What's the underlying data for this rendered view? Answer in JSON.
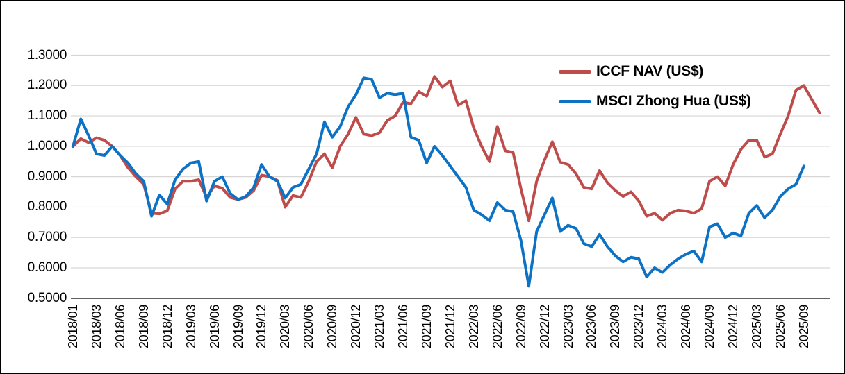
{
  "legend": {
    "items": [
      {
        "label": "ICCF NAV (US$)",
        "color": "#BE4C4B"
      },
      {
        "label": "MSCI Zhong Hua (US$)",
        "color": "#0D72C4"
      }
    ]
  },
  "y_axis": {
    "labels": [
      "1.3000",
      "1.2000",
      "1.1000",
      "1.0000",
      "0.9000",
      "0.8000",
      "0.7000",
      "0.6000",
      "0.5000"
    ]
  },
  "x_axis": {
    "labels": [
      "2018/01",
      "2018/03",
      "2018/06",
      "2018/09",
      "2018/12",
      "2019/03",
      "2019/06",
      "2019/09",
      "2019/12",
      "2020/03",
      "2020/06",
      "2020/09",
      "2020/12",
      "2021/03",
      "2021/06",
      "2021/09",
      "2021/12",
      "2022/03",
      "2022/06",
      "2022/09",
      "2022/12",
      "2023/03",
      "2023/06",
      "2023/09",
      "2023/12",
      "2024/03",
      "2024/06",
      "2024/09",
      "2024/12",
      "2025/03",
      "2025/06",
      "2025/09"
    ]
  },
  "colors": {
    "gridline": "#D6D6D6",
    "axis": "#000000",
    "border": "#000000"
  },
  "chart_data": {
    "type": "line",
    "title": "",
    "xlabel": "",
    "ylabel": "",
    "ylim": [
      0.5,
      1.3
    ],
    "grid": true,
    "legend_position": "top-right-inside",
    "categories": [
      "2018/01",
      "2018/01",
      "2018/02",
      "2018/03",
      "2018/04",
      "2018/05",
      "2018/06",
      "2018/07",
      "2018/08",
      "2018/09",
      "2018/10",
      "2018/11",
      "2018/12",
      "2019/01",
      "2019/02",
      "2019/03",
      "2019/04",
      "2019/05",
      "2019/06",
      "2019/07",
      "2019/08",
      "2019/09",
      "2019/10",
      "2019/11",
      "2019/12",
      "2020/01",
      "2020/02",
      "2020/03",
      "2020/04",
      "2020/05",
      "2020/06",
      "2020/07",
      "2020/08",
      "2020/09",
      "2020/10",
      "2020/11",
      "2020/12",
      "2021/01",
      "2021/02",
      "2021/03",
      "2021/04",
      "2021/05",
      "2021/06",
      "2021/07",
      "2021/08",
      "2021/09",
      "2021/10",
      "2021/11",
      "2021/12",
      "2022/01",
      "2022/02",
      "2022/03",
      "2022/04",
      "2022/05",
      "2022/06",
      "2022/07",
      "2022/08",
      "2022/09",
      "2022/10",
      "2022/11",
      "2022/12",
      "2023/01",
      "2023/02",
      "2023/03",
      "2023/04",
      "2023/05",
      "2023/06",
      "2023/07",
      "2023/08",
      "2023/09",
      "2023/10",
      "2023/11",
      "2023/12",
      "2024/01",
      "2024/02",
      "2024/03",
      "2024/04",
      "2024/05",
      "2024/06",
      "2024/07",
      "2024/08",
      "2024/09",
      "2024/10",
      "2024/11",
      "2024/12",
      "2025/01",
      "2025/02",
      "2025/03",
      "2025/04",
      "2025/05",
      "2025/06",
      "2025/07",
      "2025/08",
      "2025/09",
      "2025/10",
      "2025/11"
    ],
    "series": [
      {
        "name": "ICCF NAV (US$)",
        "color": "#BE4C4B",
        "values": [
          1.0,
          1.025,
          1.012,
          1.028,
          1.02,
          1.0,
          0.97,
          0.93,
          0.9,
          0.875,
          0.78,
          0.778,
          0.788,
          0.86,
          0.885,
          0.885,
          0.89,
          0.832,
          0.87,
          0.862,
          0.832,
          0.825,
          0.832,
          0.855,
          0.905,
          0.9,
          0.888,
          0.8,
          0.838,
          0.832,
          0.885,
          0.95,
          0.975,
          0.93,
          1.0,
          1.04,
          1.095,
          1.04,
          1.035,
          1.045,
          1.085,
          1.1,
          1.145,
          1.14,
          1.18,
          1.165,
          1.23,
          1.195,
          1.215,
          1.135,
          1.15,
          1.06,
          1.0,
          0.95,
          1.065,
          0.985,
          0.98,
          0.86,
          0.755,
          0.885,
          0.955,
          1.015,
          0.948,
          0.94,
          0.91,
          0.865,
          0.86,
          0.92,
          0.88,
          0.855,
          0.835,
          0.85,
          0.82,
          0.77,
          0.78,
          0.757,
          0.78,
          0.79,
          0.787,
          0.78,
          0.795,
          0.885,
          0.9,
          0.87,
          0.94,
          0.99,
          1.02,
          1.02,
          0.965,
          0.975,
          1.04,
          1.1,
          1.185,
          1.2,
          1.155,
          1.11
        ]
      },
      {
        "name": "MSCI Zhong Hua (US$)",
        "color": "#0D72C4",
        "values": [
          1.0,
          1.09,
          1.035,
          0.975,
          0.97,
          1.0,
          0.97,
          0.945,
          0.91,
          0.885,
          0.77,
          0.84,
          0.81,
          0.89,
          0.925,
          0.945,
          0.95,
          0.82,
          0.885,
          0.9,
          0.845,
          0.825,
          0.835,
          0.865,
          0.94,
          0.9,
          0.885,
          0.83,
          0.865,
          0.875,
          0.925,
          0.975,
          1.08,
          1.03,
          1.065,
          1.13,
          1.17,
          1.225,
          1.22,
          1.16,
          1.175,
          1.17,
          1.175,
          1.03,
          1.02,
          0.945,
          1.0,
          0.97,
          0.935,
          0.9,
          0.865,
          0.79,
          0.775,
          0.755,
          0.815,
          0.79,
          0.785,
          0.69,
          0.54,
          0.72,
          0.775,
          0.83,
          0.72,
          0.74,
          0.73,
          0.68,
          0.67,
          0.71,
          0.67,
          0.64,
          0.62,
          0.635,
          0.63,
          0.57,
          0.6,
          0.585,
          0.61,
          0.63,
          0.645,
          0.655,
          0.62,
          0.735,
          0.745,
          0.7,
          0.715,
          0.705,
          0.78,
          0.805,
          0.765,
          0.79,
          0.835,
          0.86,
          0.875,
          0.935,
          null,
          null
        ]
      }
    ]
  }
}
